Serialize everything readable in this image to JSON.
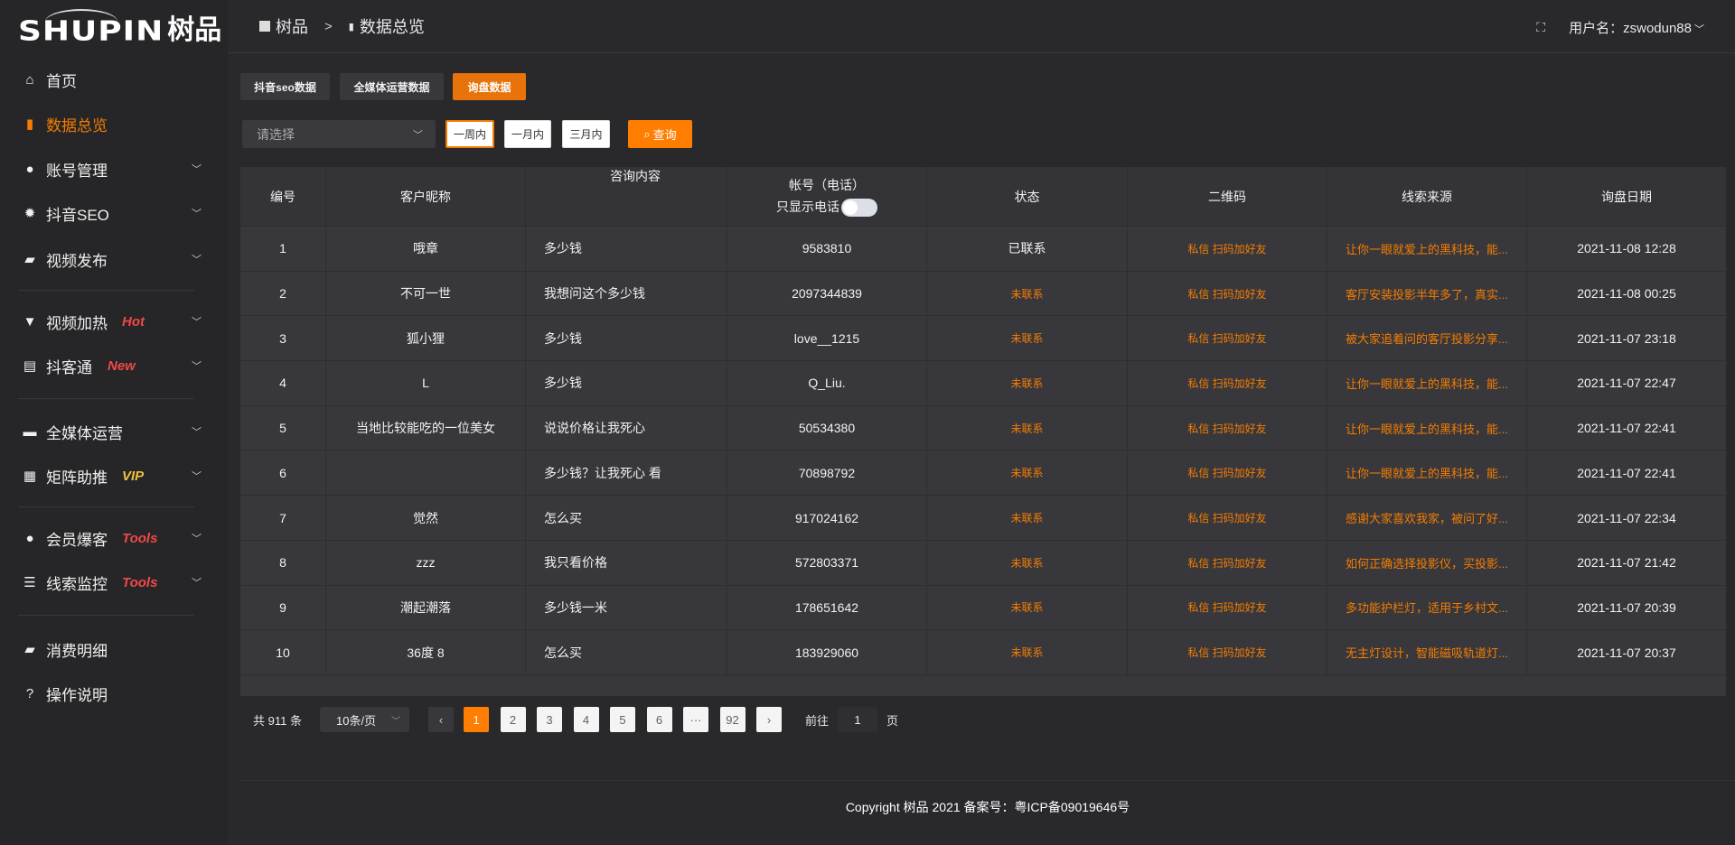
{
  "logo": {
    "en": "SHUPIN",
    "cn": "树品"
  },
  "sidebar": {
    "items": [
      {
        "label": "首页",
        "icon": "home-icon",
        "glyph": "⌂"
      },
      {
        "label": "数据总览",
        "icon": "bar-chart-icon",
        "glyph": "▮"
      },
      {
        "label": "账号管理",
        "icon": "user-icon",
        "glyph": "●"
      },
      {
        "label": "抖音SEO",
        "icon": "gear-icon",
        "glyph": "✹"
      },
      {
        "label": "视频发布",
        "icon": "video-icon",
        "glyph": "▰"
      },
      {
        "label": "视频加热",
        "icon": "flame-icon",
        "glyph": "▼",
        "tag": "Hot"
      },
      {
        "label": "抖客通",
        "icon": "chat-icon",
        "glyph": "▤",
        "tag": "New"
      },
      {
        "label": "全媒体运营",
        "icon": "monitor-icon",
        "glyph": "▬"
      },
      {
        "label": "矩阵助推",
        "icon": "grid-icon",
        "glyph": "▦",
        "tag": "VIP"
      },
      {
        "label": "会员爆客",
        "icon": "member-icon",
        "glyph": "●",
        "tag": "Tools"
      },
      {
        "label": "线索监控",
        "icon": "sliders-icon",
        "glyph": "☰",
        "tag": "Tools"
      },
      {
        "label": "消费明细",
        "icon": "wallet-icon",
        "glyph": "▰"
      },
      {
        "label": "操作说明",
        "icon": "help-icon",
        "glyph": "?"
      }
    ]
  },
  "header": {
    "breadcrumb": [
      "树品",
      "数据总览"
    ],
    "breadcrumb_sep": ">",
    "user_label": "用户名：zswodun88",
    "fullscreen_icon": "⛶"
  },
  "tabs": [
    "抖音seo数据",
    "全媒体运营数据",
    "询盘数据"
  ],
  "filters": {
    "select_placeholder": "请选择",
    "ranges": [
      "一周内",
      "一月内",
      "三月内"
    ],
    "query": "查询"
  },
  "table": {
    "columns": [
      "编号",
      "客户昵称",
      "咨询内容",
      "帐号（电话）",
      "状态",
      "二维码",
      "线索来源",
      "询盘日期"
    ],
    "phone_toggle_label": "只显示电话",
    "phone_toggle_on": false,
    "rows": [
      [
        "1",
        "哦章",
        "多少钱",
        "9583810",
        "已联系",
        "私信 扫码加好友",
        "让你一眼就爱上的黑科技，能...",
        "2021-11-08 12:28"
      ],
      [
        "2",
        "不可一世",
        "我想问这个多少钱",
        "2097344839",
        "未联系",
        "私信 扫码加好友",
        "客厅安装投影半年多了，真实...",
        "2021-11-08 00:25"
      ],
      [
        "3",
        "狐小狸",
        "多少钱",
        "love__1215",
        "未联系",
        "私信 扫码加好友",
        "被大家追着问的客厅投影分享...",
        "2021-11-07 23:18"
      ],
      [
        "4",
        "L",
        "多少钱",
        "Q_Liu.",
        "未联系",
        "私信 扫码加好友",
        "让你一眼就爱上的黑科技，能...",
        "2021-11-07 22:47"
      ],
      [
        "5",
        "当地比较能吃的一位美女",
        "说说价格让我死心",
        "50534380",
        "未联系",
        "私信 扫码加好友",
        "让你一眼就爱上的黑科技，能...",
        "2021-11-07 22:41"
      ],
      [
        "6",
        "",
        "多少钱？让我死心 看",
        "70898792",
        "未联系",
        "私信 扫码加好友",
        "让你一眼就爱上的黑科技，能...",
        "2021-11-07 22:41"
      ],
      [
        "7",
        "觉然",
        "怎么买",
        "917024162",
        "未联系",
        "私信 扫码加好友",
        "感谢大家喜欢我家，被问了好...",
        "2021-11-07 22:34"
      ],
      [
        "8",
        "zzz",
        "我只看价格",
        "572803371",
        "未联系",
        "私信 扫码加好友",
        "如何正确选择投影仪，买投影...",
        "2021-11-07 21:42"
      ],
      [
        "9",
        "潮起潮落",
        "多少钱一米",
        "178651642",
        "未联系",
        "私信 扫码加好友",
        "多功能护栏灯，适用于乡村文...",
        "2021-11-07 20:39"
      ],
      [
        "10",
        "36度 8",
        "怎么买",
        "183929060",
        "未联系",
        "私信 扫码加好友",
        "无主灯设计，智能磁吸轨道灯...",
        "2021-11-07 20:37"
      ]
    ]
  },
  "pagination": {
    "total": "共 911 条",
    "page_size": "10条/页",
    "pages": [
      "1",
      "2",
      "3",
      "4",
      "5",
      "6",
      "···",
      "92"
    ],
    "current": "1",
    "goto_label": "前往",
    "goto_value": "1",
    "page_unit": "页"
  },
  "footer": {
    "copyright": "Copyright 树品 2021 备案号：粤ICP备09019646号"
  },
  "colors": {
    "accent": "#ff7d00",
    "hot": "#f04848",
    "vip": "#f0c040",
    "sidebar_bg": "#262628",
    "table_bg": "#38383c"
  }
}
